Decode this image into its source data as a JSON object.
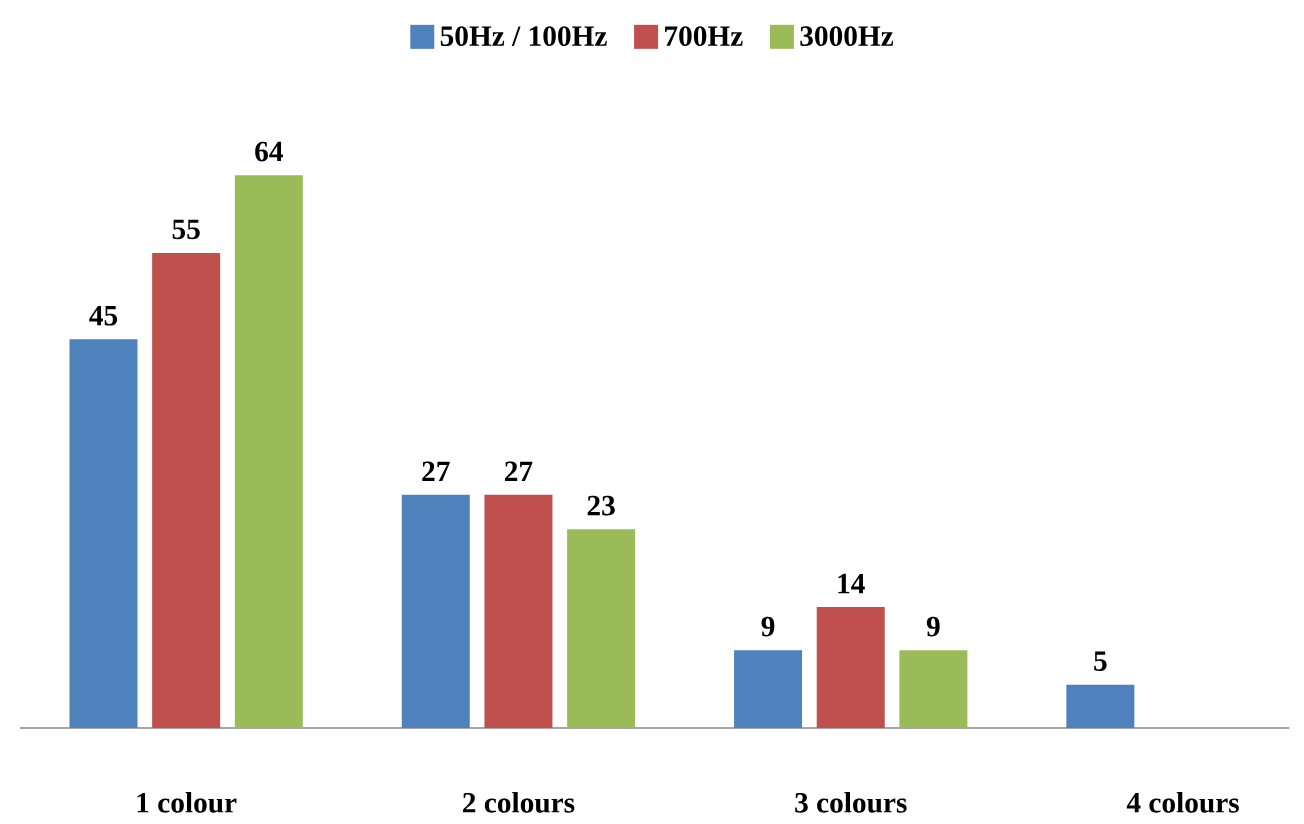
{
  "chart_data": {
    "type": "bar",
    "categories": [
      "1 colour",
      "2 colours",
      "3 colours",
      "4 colours"
    ],
    "series": [
      {
        "name": "50Hz / 100Hz",
        "color": "#4f81bd",
        "values": [
          45,
          27,
          9,
          5
        ]
      },
      {
        "name": "700Hz",
        "color": "#c0504d",
        "values": [
          55,
          27,
          14,
          null
        ]
      },
      {
        "name": "3000Hz",
        "color": "#9bbb59",
        "values": [
          64,
          23,
          9,
          null
        ]
      }
    ],
    "data_labels": true,
    "legend": "top"
  }
}
